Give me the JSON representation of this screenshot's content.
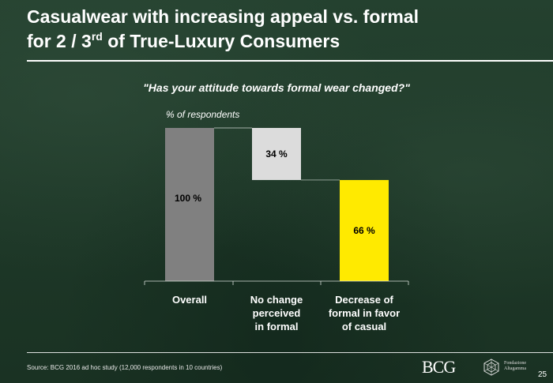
{
  "slide": {
    "title_line1": "Casualwear with increasing appeal vs. formal",
    "title_line2_prefix": "for 2 / 3",
    "title_superscript": "rd",
    "title_line2_suffix": " of True-Luxury Consumers",
    "question": "\"Has your attitude towards formal wear changed?\"",
    "unit_label": "% of respondents",
    "source": "Source: BCG 2016 ad hoc study (12,000 respondents in 10 countries)",
    "brand": "BCG",
    "partner_lines": [
      "Fondazione",
      "Altagamma"
    ],
    "page_number": "25"
  },
  "chart_data": {
    "type": "bar",
    "subtype": "waterfall",
    "title": "\"Has your attitude towards formal wear changed?\"",
    "ylabel": "% of respondents",
    "categories": [
      "Overall",
      "No change perceived in formal",
      "Decrease of formal in favor of casual"
    ],
    "category_lines": [
      [
        "Overall"
      ],
      [
        "No change",
        "perceived",
        "in formal"
      ],
      [
        "Decrease of",
        "formal in favor",
        "of casual"
      ]
    ],
    "values": [
      100,
      34,
      66
    ],
    "floating": [
      false,
      true,
      false
    ],
    "labels": [
      "100 %",
      "34 %",
      "66 %"
    ],
    "colors": [
      "#808080",
      "#dcdcdc",
      "#ffea00"
    ],
    "ylim": [
      0,
      100
    ]
  }
}
